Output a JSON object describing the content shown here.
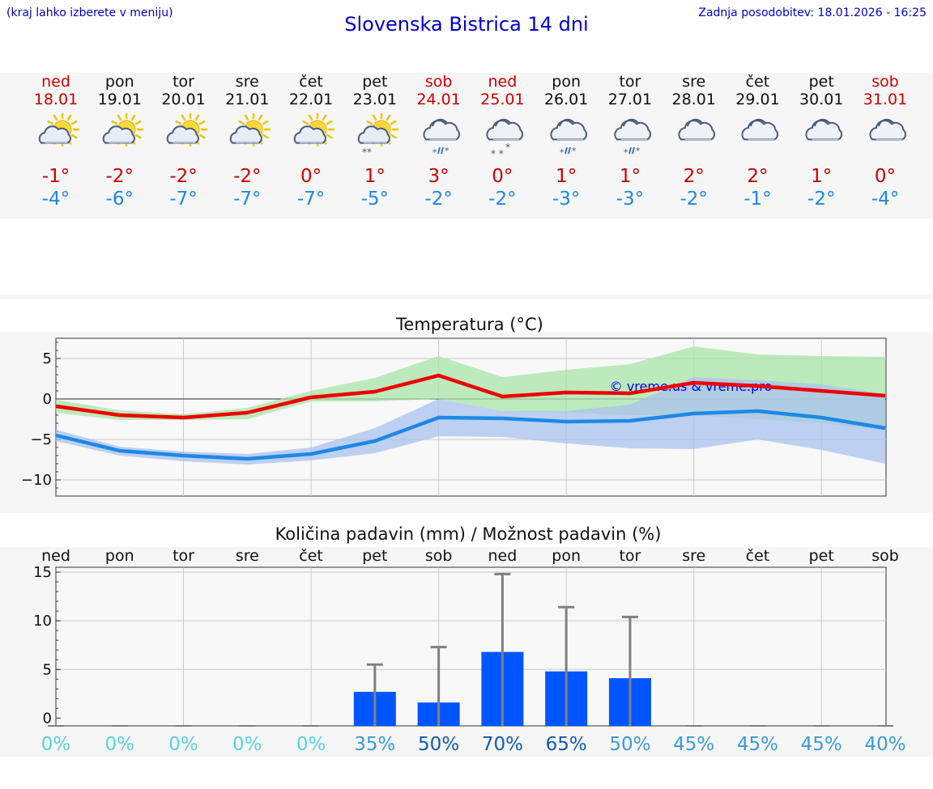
{
  "header": {
    "hint": "(kraj lahko izberete v meniju)",
    "title": "Slovenska Bistrica 14 dni",
    "updated": "Zadnja posodobitev: 18.01.2026 - 16:25"
  },
  "days": [
    {
      "name": "ned",
      "date": "18.01",
      "weekend": true,
      "icon": "sun-cloud-icon",
      "tmax": "-1°",
      "tmin": "-4°"
    },
    {
      "name": "pon",
      "date": "19.01",
      "weekend": false,
      "icon": "sun-cloud-icon",
      "tmax": "-2°",
      "tmin": "-6°"
    },
    {
      "name": "tor",
      "date": "20.01",
      "weekend": false,
      "icon": "sun-cloud-icon",
      "tmax": "-2°",
      "tmin": "-7°"
    },
    {
      "name": "sre",
      "date": "21.01",
      "weekend": false,
      "icon": "sun-cloud-icon",
      "tmax": "-2°",
      "tmin": "-7°"
    },
    {
      "name": "čet",
      "date": "22.01",
      "weekend": false,
      "icon": "sun-cloud-icon",
      "tmax": "0°",
      "tmin": "-7°"
    },
    {
      "name": "pet",
      "date": "23.01",
      "weekend": false,
      "icon": "sun-cloud-snow-icon",
      "tmax": "1°",
      "tmin": "-5°"
    },
    {
      "name": "sob",
      "date": "24.01",
      "weekend": true,
      "icon": "cloud-sleet-icon",
      "tmax": "3°",
      "tmin": "-2°"
    },
    {
      "name": "ned",
      "date": "25.01",
      "weekend": true,
      "icon": "cloud-snow-icon",
      "tmax": "0°",
      "tmin": "-2°"
    },
    {
      "name": "pon",
      "date": "26.01",
      "weekend": false,
      "icon": "cloud-sleet-icon",
      "tmax": "1°",
      "tmin": "-3°"
    },
    {
      "name": "tor",
      "date": "27.01",
      "weekend": false,
      "icon": "cloud-sleet-icon",
      "tmax": "1°",
      "tmin": "-3°"
    },
    {
      "name": "sre",
      "date": "28.01",
      "weekend": false,
      "icon": "cloud-icon",
      "tmax": "2°",
      "tmin": "-2°"
    },
    {
      "name": "čet",
      "date": "29.01",
      "weekend": false,
      "icon": "cloud-icon",
      "tmax": "2°",
      "tmin": "-1°"
    },
    {
      "name": "pet",
      "date": "30.01",
      "weekend": false,
      "icon": "cloud-icon",
      "tmax": "1°",
      "tmin": "-2°"
    },
    {
      "name": "sob",
      "date": "31.01",
      "weekend": true,
      "icon": "cloud-icon",
      "tmax": "0°",
      "tmin": "-4°"
    }
  ],
  "colors": {
    "title_blue": "#0000cc",
    "tmax_red": "#cc0000",
    "tmin_blue": "#1e88e5",
    "max_band": "#a8e6a8",
    "min_band": "#a9c3ef",
    "overlap_band": "#7fc0a8",
    "precip_bar": "#0055ff",
    "error_bar": "#808080"
  },
  "chart_data": [
    {
      "type": "line",
      "title": "Temperatura (°C)",
      "watermark": "© vreme.us & vreme.pro",
      "ylim": [
        -12,
        7.5
      ],
      "yticks": [
        5,
        0,
        -5,
        -10
      ],
      "ytick_labels": [
        "5",
        "0",
        "−5",
        "−10"
      ],
      "x": [
        0,
        1,
        2,
        3,
        4,
        5,
        6,
        7,
        8,
        9,
        10,
        11,
        12,
        13
      ],
      "series": [
        {
          "name": "max",
          "color": "#ee0000",
          "values": [
            -0.9,
            -2.0,
            -2.3,
            -1.7,
            0.2,
            0.9,
            2.9,
            0.3,
            0.8,
            0.7,
            2.0,
            1.6,
            1.0,
            0.4
          ],
          "band_low": [
            -1.7,
            -2.6,
            -2.6,
            -2.5,
            -0.3,
            -0.3,
            0.0,
            -1.5,
            -1.7,
            -2.0,
            -2.0,
            -2.5,
            -3.0,
            -3.9
          ],
          "band_high": [
            -0.1,
            -1.4,
            -1.9,
            -1.1,
            1.0,
            2.6,
            5.3,
            2.7,
            3.6,
            4.3,
            6.5,
            5.5,
            5.3,
            5.2
          ]
        },
        {
          "name": "min",
          "color": "#1e88e5",
          "values": [
            -4.5,
            -6.4,
            -7.0,
            -7.4,
            -6.8,
            -5.2,
            -2.3,
            -2.4,
            -2.8,
            -2.7,
            -1.8,
            -1.5,
            -2.3,
            -3.6
          ],
          "band_low": [
            -5.2,
            -7.0,
            -7.7,
            -8.1,
            -7.6,
            -6.7,
            -4.6,
            -4.7,
            -5.5,
            -6.1,
            -6.2,
            -5.0,
            -6.3,
            -8.0
          ],
          "band_high": [
            -3.8,
            -5.9,
            -6.5,
            -6.8,
            -6.0,
            -3.6,
            0.0,
            -1.5,
            -1.5,
            -0.7,
            2.7,
            2.3,
            1.8,
            0.6
          ]
        }
      ]
    },
    {
      "type": "bar",
      "title": "Količina padavin (mm) / Možnost padavin (%)",
      "categories": [
        "ned",
        "pon",
        "tor",
        "sre",
        "čet",
        "pet",
        "sob",
        "ned",
        "pon",
        "tor",
        "sre",
        "čet",
        "pet",
        "sob"
      ],
      "values": [
        0,
        0,
        0,
        0,
        0,
        2.7,
        1.6,
        6.8,
        4.8,
        4.1,
        0,
        0,
        0,
        0
      ],
      "error_high": [
        0,
        0,
        0,
        0,
        0,
        5.5,
        7.3,
        14.8,
        11.4,
        10.4,
        0,
        0,
        0,
        0
      ],
      "ylim": [
        -0.8,
        15.5
      ],
      "yticks": [
        15,
        10,
        5,
        0
      ],
      "probability_labels": [
        "0%",
        "0%",
        "0%",
        "0%",
        "0%",
        "35%",
        "50%",
        "70%",
        "65%",
        "50%",
        "45%",
        "45%",
        "45%",
        "40%"
      ],
      "probability_colors": [
        "#5ad0e6",
        "#5ad0e6",
        "#5ad0e6",
        "#5ad0e6",
        "#5ad0e6",
        "#3b9bd4",
        "#1459a8",
        "#1459a8",
        "#1459a8",
        "#3b9bd4",
        "#3b9bd4",
        "#3b9bd4",
        "#3b9bd4",
        "#3b9bd4"
      ]
    }
  ]
}
